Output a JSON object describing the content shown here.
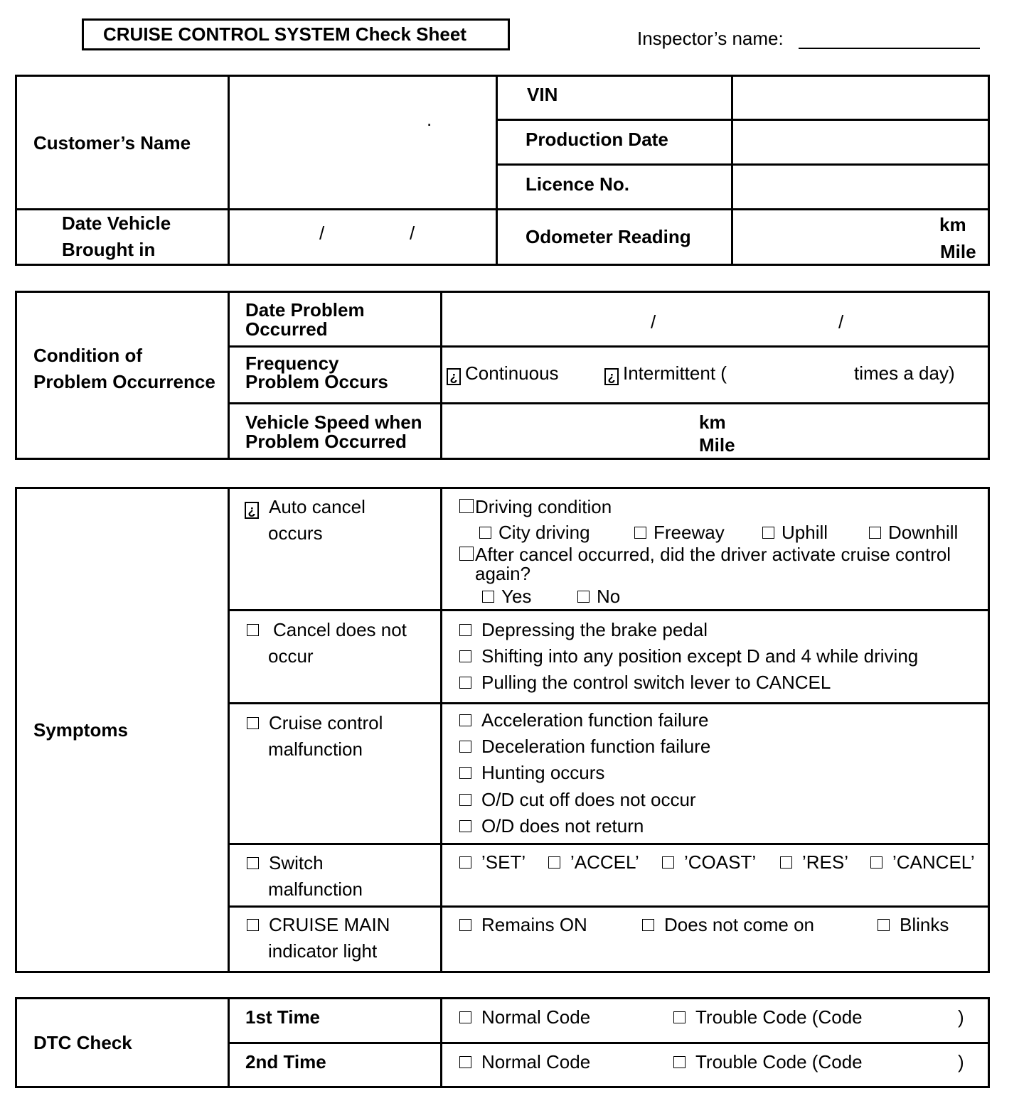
{
  "title": "CRUISE CONTROL SYSTEM Check Sheet",
  "inspector_label": "Inspector’s name:",
  "vehicle": {
    "customer_name": "Customer’s Name",
    "vin": "VIN",
    "production_date": "Production Date",
    "licence_no": "Licence No.",
    "date_brought_1": "Date Vehicle",
    "date_brought_2": "Brought in",
    "slash": "/",
    "odometer": "Odometer Reading",
    "km": "km",
    "mile": "Mile"
  },
  "condition": {
    "label_1": "Condition of",
    "label_2": "Problem Occurrence",
    "date_1": "Date Problem",
    "date_2": "Occurred",
    "freq_1": "Frequency",
    "freq_2": "Problem Occurs",
    "continuous": "Continuous",
    "intermittent": "Intermittent (",
    "times_a_day": "times a day)",
    "speed_1": "Vehicle Speed when",
    "speed_2": "Problem Occurred",
    "km": "km",
    "mile": "Mile",
    "mark": "¿"
  },
  "symptoms": {
    "label": "Symptoms",
    "auto_cancel": {
      "l1": "Auto  cancel",
      "l2": "occurs",
      "driving_condition": "Driving condition",
      "options": [
        "City driving",
        "Freeway",
        "Uphill",
        "Downhill"
      ],
      "after_1": "After cancel occurred, did the driver activate cruise control",
      "after_2": "again?",
      "yes": "Yes",
      "no": "No"
    },
    "cancel_not": {
      "l1": "Cancel  does  not",
      "l2": "occur",
      "items": [
        "Depressing the brake pedal",
        "Shifting into any position except D and 4 while driving",
        "Pulling the control switch lever to CANCEL"
      ]
    },
    "malfunction": {
      "l1": "Cruise control",
      "l2": "malfunction",
      "items": [
        "Acceleration function failure",
        "Deceleration function failure",
        "Hunting occurs",
        "O/D cut off does not occur",
        "O/D does not return"
      ]
    },
    "switch": {
      "l1": "Switch",
      "l2": "malfunction",
      "items": [
        "’SET’",
        "’ACCEL’",
        "’COAST’",
        "’RES’",
        "’CANCEL’"
      ]
    },
    "indicator": {
      "l1": "CRUISE MAIN",
      "l2": "indicator light",
      "items": [
        "Remains ON",
        "Does not come on",
        "Blinks"
      ]
    }
  },
  "dtc": {
    "label": "DTC Check",
    "rows": [
      {
        "time": "1st Time",
        "normal": "Normal Code",
        "trouble": "Trouble Code  (Code",
        "close": ")"
      },
      {
        "time": "2nd Time",
        "normal": "Normal Code",
        "trouble": "Trouble Code  (Code",
        "close": ")"
      }
    ]
  }
}
